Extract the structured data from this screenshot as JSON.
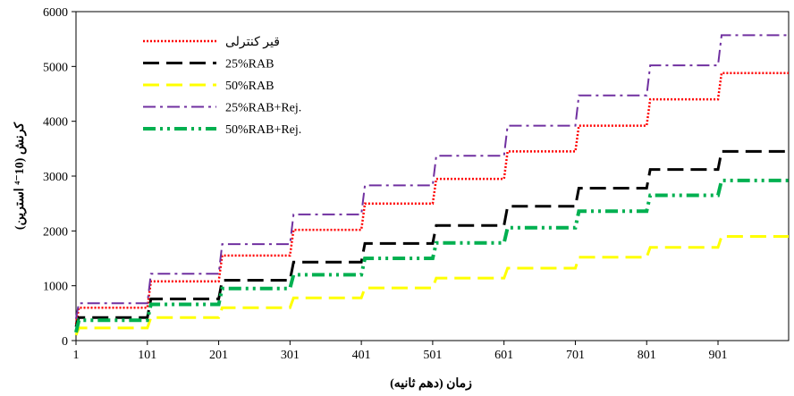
{
  "chart_data": {
    "type": "line",
    "title": "",
    "xlabel": "زمان (دهم ثانیه)",
    "ylabel": "کرنش (10⁻⁴ استرین)",
    "x_ticks": [
      1,
      101,
      201,
      301,
      401,
      501,
      601,
      701,
      801,
      901
    ],
    "y_ticks": [
      0,
      1000,
      2000,
      3000,
      4000,
      5000,
      6000
    ],
    "xlim": [
      1,
      1000
    ],
    "ylim": [
      0,
      6000
    ],
    "grid": false,
    "legend_position": "top-left",
    "series": [
      {
        "name": "قیر کنترلی",
        "color": "#ff0000",
        "dash": "dotted",
        "x": [
          1,
          5,
          101,
          106,
          201,
          206,
          301,
          306,
          401,
          406,
          501,
          506,
          601,
          606,
          701,
          706,
          801,
          806,
          901,
          906,
          1000
        ],
        "y": [
          300,
          600,
          600,
          1080,
          1080,
          1550,
          1550,
          2020,
          2020,
          2500,
          2500,
          2950,
          2950,
          3450,
          3450,
          3920,
          3920,
          4400,
          4400,
          4880,
          4880
        ]
      },
      {
        "name": "25%RAB",
        "color": "#000000",
        "dash": "long-dash",
        "x": [
          1,
          5,
          101,
          106,
          201,
          206,
          301,
          306,
          401,
          406,
          501,
          506,
          601,
          606,
          701,
          706,
          801,
          806,
          901,
          906,
          1000
        ],
        "y": [
          250,
          420,
          420,
          760,
          760,
          1100,
          1100,
          1430,
          1430,
          1770,
          1770,
          2100,
          2100,
          2450,
          2450,
          2780,
          2780,
          3120,
          3120,
          3450,
          3450
        ]
      },
      {
        "name": "50%RAB",
        "color": "#ffff00",
        "dash": "long-dash",
        "x": [
          1,
          5,
          101,
          106,
          201,
          206,
          301,
          306,
          401,
          406,
          501,
          506,
          601,
          606,
          701,
          706,
          801,
          806,
          901,
          906,
          1000
        ],
        "y": [
          100,
          230,
          230,
          420,
          420,
          600,
          600,
          780,
          780,
          960,
          960,
          1140,
          1140,
          1320,
          1320,
          1520,
          1520,
          1700,
          1700,
          1900,
          1900
        ]
      },
      {
        "name": "25%RAB+Rej.",
        "color": "#7030a0",
        "dash": "dash-dot",
        "x": [
          1,
          5,
          101,
          106,
          201,
          206,
          301,
          306,
          401,
          406,
          501,
          506,
          601,
          606,
          701,
          706,
          801,
          806,
          901,
          906,
          1000
        ],
        "y": [
          400,
          680,
          680,
          1220,
          1220,
          1760,
          1760,
          2300,
          2300,
          2830,
          2830,
          3370,
          3370,
          3920,
          3920,
          4470,
          4470,
          5020,
          5020,
          5570,
          5570
        ]
      },
      {
        "name": "50%RAB+Rej.",
        "color": "#00b050",
        "dash": "dash-dot-dot",
        "x": [
          1,
          5,
          101,
          106,
          201,
          206,
          301,
          306,
          401,
          406,
          501,
          506,
          601,
          606,
          701,
          706,
          801,
          806,
          901,
          906,
          1000
        ],
        "y": [
          150,
          370,
          370,
          660,
          660,
          950,
          950,
          1200,
          1200,
          1500,
          1500,
          1780,
          1780,
          2060,
          2060,
          2360,
          2360,
          2650,
          2650,
          2920,
          2920
        ]
      }
    ]
  }
}
